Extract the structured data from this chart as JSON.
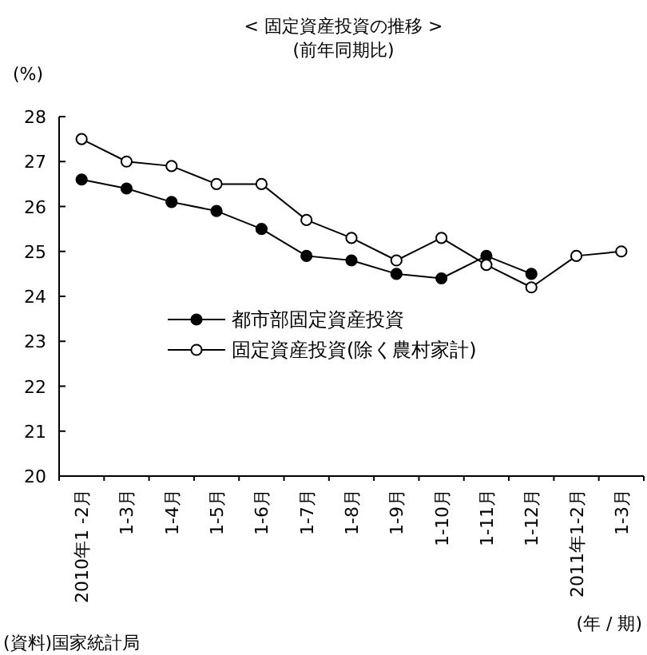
{
  "chart_data": {
    "type": "line",
    "title": "< 固定資産投資の推移 >",
    "subtitle": "(前年同期比)",
    "ylabel": "(%)",
    "xlabel": "(年 / 期)",
    "annotations": [
      "(資料)国家統計局"
    ],
    "categories": [
      "2010年1 -2月",
      "1-3月",
      "1-4月",
      "1-5月",
      "1-6月",
      "1-7月",
      "1-8月",
      "1-9月",
      "1-10月",
      "1-11月",
      "1-12月",
      "2011年1-2月",
      "1-3月"
    ],
    "series": [
      {
        "name": "都市部固定資産投資",
        "color": "#000000",
        "marker": "circle",
        "values": [
          26.6,
          26.4,
          26.1,
          25.9,
          25.5,
          24.9,
          24.8,
          24.5,
          24.4,
          24.9,
          24.5,
          null,
          null
        ]
      },
      {
        "name": "固定資産投資(除く農村家計)",
        "color": "#000000",
        "marker": "circle",
        "values": [
          27.5,
          27.0,
          26.9,
          26.5,
          26.5,
          25.7,
          25.3,
          24.8,
          25.3,
          24.7,
          24.2,
          24.9,
          25.0
        ]
      }
    ],
    "ylim": [
      20,
      28
    ],
    "yticks": [
      20,
      21,
      22,
      23,
      24,
      25,
      26,
      27,
      28
    ],
    "grid": false,
    "legend": "left",
    "line_style": "solid"
  }
}
